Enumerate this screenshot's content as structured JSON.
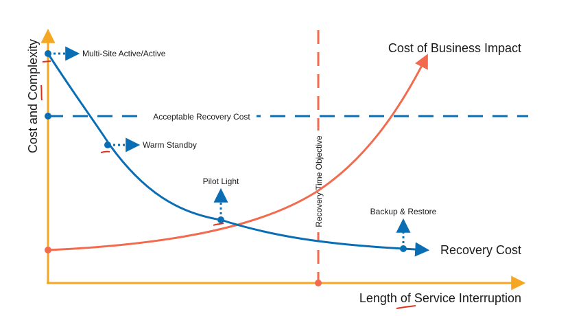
{
  "axes": {
    "y_title": "Cost and Complexity",
    "x_title": "Length of Service Interruption"
  },
  "curves": {
    "business_impact": "Cost of Business Impact",
    "recovery_cost": "Recovery Cost"
  },
  "threshold": {
    "label": "Acceptable Recovery Cost"
  },
  "rto": {
    "label": "Recovery Time Objective"
  },
  "strategies": [
    {
      "label": "Multi-Site Active/Active"
    },
    {
      "label": "Warm Standby"
    },
    {
      "label": "Pilot Light"
    },
    {
      "label": "Backup & Restore"
    }
  ],
  "colors": {
    "axis": "#f5a623",
    "recovery": "#0a6eb4",
    "impact": "#f26b4f",
    "threshold": "#0a6eb4",
    "rto": "#f26b4f",
    "markup": "#e0301e"
  }
}
